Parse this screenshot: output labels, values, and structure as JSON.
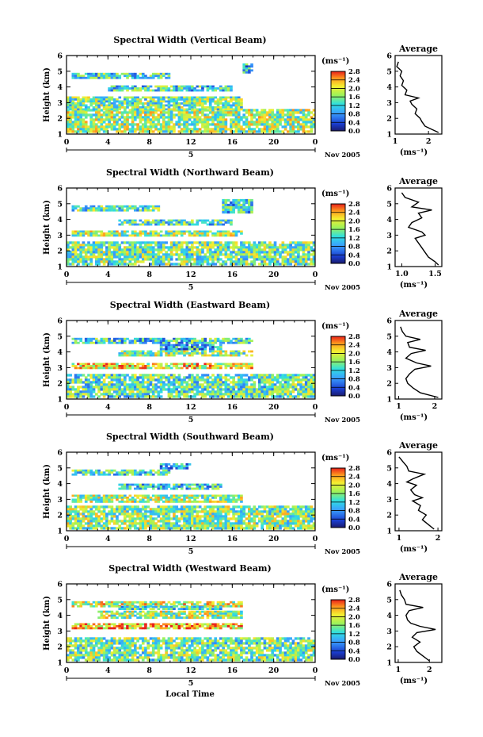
{
  "figure": {
    "xlabel_bottom": "Local Time",
    "date_label": "Nov 2005",
    "date_axis_day": "5",
    "ylabel": "Height (km)",
    "unit_label": "(ms⁻¹)",
    "avg_title": "Average"
  },
  "chart_data": [
    {
      "type": "heatmap",
      "title": "Spectral Width (Vertical Beam)",
      "xlabel": "",
      "ylabel": "Height (km)",
      "x_ticks": [
        "0",
        "4",
        "8",
        "12",
        "16",
        "20",
        "0"
      ],
      "xlim": [
        0,
        24
      ],
      "y_ticks": [
        "1",
        "2",
        "3",
        "4",
        "5",
        "6"
      ],
      "ylim": [
        1,
        6
      ],
      "colorbar": {
        "label": "(ms⁻¹)",
        "ticks": [
          "0.0",
          "0.4",
          "0.8",
          "1.2",
          "1.6",
          "2.0",
          "2.4",
          "2.8"
        ],
        "range": [
          0,
          2.8
        ]
      },
      "grid_layers": [
        {
          "h_from": 1.1,
          "h_to": 2.6,
          "t_from": 0,
          "t_to": 24,
          "level": 1.7
        },
        {
          "h_from": 2.6,
          "h_to": 3.4,
          "t_from": 0,
          "t_to": 17,
          "level": 1.5
        },
        {
          "h_from": 3.8,
          "h_to": 4.1,
          "t_from": 4,
          "t_to": 16,
          "level": 1.2
        },
        {
          "h_from": 4.6,
          "h_to": 4.9,
          "t_from": 0.5,
          "t_to": 10,
          "level": 1.3
        },
        {
          "h_from": 4.9,
          "h_to": 5.5,
          "t_from": 17,
          "t_to": 18,
          "level": 1.0
        }
      ],
      "average": {
        "title": "Average",
        "x_ticks": [
          "1",
          "2"
        ],
        "xlim": [
          1,
          2.4
        ],
        "ylim": [
          1,
          6
        ],
        "xlabel": "(ms⁻¹)",
        "h": [
          1.1,
          1.3,
          1.5,
          1.8,
          2.0,
          2.3,
          2.6,
          2.9,
          3.1,
          3.3,
          3.5,
          3.8,
          4.1,
          4.4,
          4.7,
          5.0,
          5.3,
          5.6
        ],
        "w": [
          2.3,
          2.1,
          1.9,
          1.8,
          1.75,
          1.6,
          1.65,
          1.5,
          1.45,
          1.7,
          1.3,
          1.35,
          1.2,
          1.25,
          1.15,
          1.2,
          1.05,
          1.1
        ]
      }
    },
    {
      "type": "heatmap",
      "title": "Spectral Width (Northward Beam)",
      "xlabel": "",
      "ylabel": "Height (km)",
      "x_ticks": [
        "0",
        "4",
        "8",
        "12",
        "16",
        "20",
        "0"
      ],
      "xlim": [
        0,
        24
      ],
      "y_ticks": [
        "1",
        "2",
        "3",
        "4",
        "5",
        "6"
      ],
      "ylim": [
        1,
        6
      ],
      "colorbar": {
        "label": "(ms⁻¹)",
        "ticks": [
          "0.0",
          "0.4",
          "0.8",
          "1.2",
          "1.6",
          "2.0",
          "2.4",
          "2.8"
        ],
        "range": [
          0,
          2.8
        ]
      },
      "grid_layers": [
        {
          "h_from": 1.1,
          "h_to": 2.6,
          "t_from": 0,
          "t_to": 24,
          "level": 1.5
        },
        {
          "h_from": 2.9,
          "h_to": 3.3,
          "t_from": 0.5,
          "t_to": 17,
          "level": 1.7
        },
        {
          "h_from": 3.6,
          "h_to": 4.0,
          "t_from": 5,
          "t_to": 16,
          "level": 1.3
        },
        {
          "h_from": 4.6,
          "h_to": 4.9,
          "t_from": 0.5,
          "t_to": 9,
          "level": 1.4
        },
        {
          "h_from": 4.4,
          "h_to": 5.3,
          "t_from": 15,
          "t_to": 18,
          "level": 1.1
        }
      ],
      "average": {
        "title": "Average",
        "x_ticks": [
          "1.0",
          "1.5"
        ],
        "xlim": [
          0.9,
          1.6
        ],
        "ylim": [
          1,
          6
        ],
        "xlabel": "(ms⁻¹)",
        "h": [
          1.1,
          1.3,
          1.6,
          1.9,
          2.2,
          2.5,
          2.8,
          3.0,
          3.2,
          3.5,
          3.8,
          4.1,
          4.4,
          4.6,
          4.8,
          5.1,
          5.4,
          5.7
        ],
        "w": [
          1.55,
          1.5,
          1.4,
          1.35,
          1.3,
          1.25,
          1.2,
          1.35,
          1.3,
          1.1,
          1.15,
          1.3,
          1.25,
          1.45,
          1.15,
          1.25,
          1.05,
          1.0
        ]
      }
    },
    {
      "type": "heatmap",
      "title": "Spectral Width (Eastward Beam)",
      "xlabel": "",
      "ylabel": "Height (km)",
      "x_ticks": [
        "0",
        "4",
        "8",
        "12",
        "16",
        "20",
        "0"
      ],
      "xlim": [
        0,
        24
      ],
      "y_ticks": [
        "1",
        "2",
        "3",
        "4",
        "5",
        "6"
      ],
      "ylim": [
        1,
        6
      ],
      "colorbar": {
        "label": "(ms⁻¹)",
        "ticks": [
          "0.0",
          "0.4",
          "0.8",
          "1.2",
          "1.6",
          "2.0",
          "2.4",
          "2.8"
        ],
        "range": [
          0,
          2.8
        ]
      },
      "grid_layers": [
        {
          "h_from": 1.1,
          "h_to": 2.6,
          "t_from": 0,
          "t_to": 24,
          "level": 1.4
        },
        {
          "h_from": 3.0,
          "h_to": 3.3,
          "t_from": 0.5,
          "t_to": 18,
          "level": 2.1
        },
        {
          "h_from": 3.7,
          "h_to": 4.1,
          "t_from": 5,
          "t_to": 18,
          "level": 1.6
        },
        {
          "h_from": 4.6,
          "h_to": 4.9,
          "t_from": 0.5,
          "t_to": 18,
          "level": 1.2
        },
        {
          "h_from": 4.1,
          "h_to": 4.5,
          "t_from": 9,
          "t_to": 15,
          "level": 1.0
        }
      ],
      "average": {
        "title": "Average",
        "x_ticks": [
          "1",
          "2"
        ],
        "xlim": [
          0.9,
          2.2
        ],
        "ylim": [
          1,
          6
        ],
        "xlabel": "(ms⁻¹)",
        "h": [
          1.1,
          1.4,
          1.7,
          2.0,
          2.3,
          2.6,
          2.9,
          3.1,
          3.3,
          3.6,
          3.9,
          4.1,
          4.3,
          4.6,
          4.8,
          5.0,
          5.3,
          5.6
        ],
        "w": [
          2.1,
          1.6,
          1.4,
          1.25,
          1.2,
          1.3,
          1.45,
          1.9,
          1.5,
          1.2,
          1.35,
          1.75,
          1.3,
          1.25,
          1.6,
          1.2,
          1.1,
          1.05
        ]
      }
    },
    {
      "type": "heatmap",
      "title": "Spectral Width (Southward Beam)",
      "xlabel": "",
      "ylabel": "Height (km)",
      "x_ticks": [
        "0",
        "4",
        "8",
        "12",
        "16",
        "20",
        "0"
      ],
      "xlim": [
        0,
        24
      ],
      "y_ticks": [
        "1",
        "2",
        "3",
        "4",
        "5",
        "6"
      ],
      "ylim": [
        1,
        6
      ],
      "colorbar": {
        "label": "(ms⁻¹)",
        "ticks": [
          "0.0",
          "0.4",
          "0.8",
          "1.2",
          "1.6",
          "2.0",
          "2.4",
          "2.8"
        ],
        "range": [
          0,
          2.8
        ]
      },
      "grid_layers": [
        {
          "h_from": 1.1,
          "h_to": 2.6,
          "t_from": 0,
          "t_to": 24,
          "level": 1.6
        },
        {
          "h_from": 2.8,
          "h_to": 3.3,
          "t_from": 0.5,
          "t_to": 17,
          "level": 1.7
        },
        {
          "h_from": 3.6,
          "h_to": 4.0,
          "t_from": 5,
          "t_to": 15,
          "level": 1.2
        },
        {
          "h_from": 4.6,
          "h_to": 4.9,
          "t_from": 0.5,
          "t_to": 10,
          "level": 1.3
        },
        {
          "h_from": 5.0,
          "h_to": 5.3,
          "t_from": 9,
          "t_to": 12,
          "level": 1.0
        }
      ],
      "average": {
        "title": "Average",
        "x_ticks": [
          "1",
          "2"
        ],
        "xlim": [
          0.9,
          2.1
        ],
        "ylim": [
          1,
          6
        ],
        "xlabel": "(ms⁻¹)",
        "h": [
          1.1,
          1.4,
          1.7,
          2.0,
          2.3,
          2.6,
          2.9,
          3.1,
          3.3,
          3.6,
          3.9,
          4.1,
          4.3,
          4.6,
          4.8,
          5.1,
          5.4,
          5.7
        ],
        "w": [
          1.9,
          1.75,
          1.6,
          1.7,
          1.5,
          1.55,
          1.35,
          1.6,
          1.4,
          1.3,
          1.45,
          1.2,
          1.35,
          1.65,
          1.25,
          1.2,
          1.1,
          1.0
        ]
      }
    },
    {
      "type": "heatmap",
      "title": "Spectral Width (Westward Beam)",
      "xlabel": "Local Time",
      "ylabel": "Height (km)",
      "x_ticks": [
        "0",
        "4",
        "8",
        "12",
        "16",
        "20",
        "0"
      ],
      "xlim": [
        0,
        24
      ],
      "y_ticks": [
        "1",
        "2",
        "3",
        "4",
        "5",
        "6"
      ],
      "ylim": [
        1,
        6
      ],
      "colorbar": {
        "label": "(ms⁻¹)",
        "ticks": [
          "0.0",
          "0.4",
          "0.8",
          "1.2",
          "1.6",
          "2.0",
          "2.4",
          "2.8"
        ],
        "range": [
          0,
          2.8
        ]
      },
      "grid_layers": [
        {
          "h_from": 1.1,
          "h_to": 2.6,
          "t_from": 0,
          "t_to": 24,
          "level": 1.5
        },
        {
          "h_from": 3.2,
          "h_to": 3.5,
          "t_from": 0.5,
          "t_to": 17,
          "level": 2.3
        },
        {
          "h_from": 3.8,
          "h_to": 4.3,
          "t_from": 3,
          "t_to": 17,
          "level": 1.7
        },
        {
          "h_from": 4.6,
          "h_to": 4.9,
          "t_from": 0.5,
          "t_to": 17,
          "level": 1.9
        },
        {
          "h_from": 4.4,
          "h_to": 4.6,
          "t_from": 5,
          "t_to": 15,
          "level": 1.3
        }
      ],
      "average": {
        "title": "Average",
        "x_ticks": [
          "1",
          "2"
        ],
        "xlim": [
          0.9,
          2.4
        ],
        "ylim": [
          1,
          6
        ],
        "xlabel": "(ms⁻¹)",
        "h": [
          1.1,
          1.4,
          1.7,
          2.0,
          2.3,
          2.6,
          2.9,
          3.1,
          3.3,
          3.5,
          3.7,
          4.0,
          4.3,
          4.5,
          4.7,
          5.0,
          5.3,
          5.6
        ],
        "w": [
          2.0,
          1.8,
          1.6,
          1.5,
          1.7,
          1.45,
          1.6,
          2.2,
          1.7,
          1.4,
          1.3,
          1.25,
          1.35,
          1.8,
          1.25,
          1.2,
          1.1,
          1.05
        ]
      }
    }
  ]
}
